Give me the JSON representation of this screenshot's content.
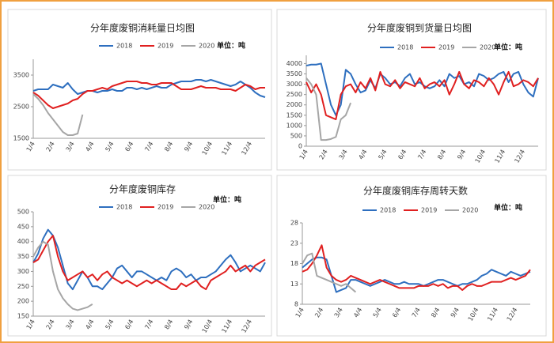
{
  "chart_data": [
    {
      "type": "line",
      "title": "分年度废铜消耗量日均图",
      "unit": "单位：吨",
      "categories": [
        "1/4",
        null,
        null,
        null,
        "2/4",
        null,
        null,
        null,
        "3/4",
        null,
        null,
        null,
        "4/4",
        null,
        null,
        null,
        "5/4",
        null,
        null,
        null,
        "6/4",
        null,
        null,
        null,
        "7/4",
        null,
        null,
        null,
        "8/4",
        null,
        null,
        null,
        "9/4",
        null,
        null,
        null,
        "10/4",
        null,
        null,
        null,
        "11/4",
        null,
        null,
        null,
        "12/4",
        null,
        null,
        null
      ],
      "ylim": [
        1500,
        4000
      ],
      "yticks": [
        1500,
        2500,
        3500
      ],
      "series": [
        {
          "name": "2018",
          "color": "#2e6fbf",
          "values": [
            3000,
            3050,
            3050,
            3050,
            3200,
            3150,
            3100,
            3250,
            3050,
            2900,
            2950,
            3000,
            3000,
            2950,
            3000,
            3000,
            3050,
            3000,
            3000,
            3100,
            3100,
            3050,
            3100,
            3050,
            3100,
            3150,
            3100,
            3100,
            3200,
            3250,
            3300,
            3300,
            3300,
            3350,
            3350,
            3300,
            3350,
            3300,
            3250,
            3200,
            3150,
            3200,
            3300,
            3200,
            3100,
            2950,
            2850,
            2800
          ]
        },
        {
          "name": "2019",
          "color": "#e02020",
          "values": [
            2950,
            2850,
            2700,
            2550,
            2450,
            2500,
            2550,
            2600,
            2700,
            2750,
            2900,
            3000,
            3000,
            3050,
            3100,
            3050,
            3150,
            3200,
            3250,
            3300,
            3300,
            3300,
            3250,
            3250,
            3200,
            3200,
            3250,
            3250,
            3250,
            3150,
            3050,
            3050,
            3050,
            3100,
            3150,
            3100,
            3100,
            3100,
            3050,
            3050,
            3050,
            3000,
            3100,
            3200,
            3150,
            3050,
            3100,
            3100
          ]
        },
        {
          "name": "2020",
          "color": "#a6a6a6",
          "values": [
            2900,
            2750,
            2550,
            2300,
            2100,
            1900,
            1700,
            1600,
            1600,
            1650,
            2250,
            null,
            null,
            null,
            null,
            null,
            null,
            null,
            null,
            null,
            null,
            null,
            null,
            null,
            null,
            null,
            null,
            null,
            null,
            null,
            null,
            null,
            null,
            null,
            null,
            null,
            null,
            null,
            null,
            null,
            null,
            null,
            null,
            null,
            null,
            null,
            null,
            null
          ]
        }
      ]
    },
    {
      "type": "line",
      "title": "分年度废铜到货量日均图",
      "unit": "单位：吨",
      "categories": [
        "1/4",
        null,
        null,
        null,
        "2/4",
        null,
        null,
        null,
        "3/4",
        null,
        null,
        null,
        "4/4",
        null,
        null,
        null,
        "5/4",
        null,
        null,
        null,
        "6/4",
        null,
        null,
        null,
        "7/4",
        null,
        null,
        null,
        "8/4",
        null,
        null,
        null,
        "9/4",
        null,
        null,
        null,
        "10/4",
        null,
        null,
        null,
        "11/4",
        null,
        null,
        null,
        "12/4",
        null,
        null,
        null
      ],
      "ylim": [
        0,
        4400
      ],
      "yticks": [
        0,
        500,
        1000,
        1500,
        2000,
        2500,
        3000,
        3500,
        4000
      ],
      "series": [
        {
          "name": "2018",
          "color": "#2e6fbf",
          "values": [
            3900,
            3950,
            3950,
            4000,
            3000,
            2000,
            1500,
            2000,
            3700,
            3500,
            3000,
            2600,
            2700,
            3200,
            2800,
            3500,
            3300,
            3000,
            3100,
            2900,
            3300,
            3500,
            3000,
            3100,
            2900,
            2800,
            2900,
            3200,
            2900,
            3500,
            3300,
            3400,
            3000,
            3100,
            2900,
            3500,
            3400,
            3200,
            3300,
            3500,
            3600,
            3100,
            3500,
            3600,
            3000,
            2600,
            2400,
            3300
          ]
        },
        {
          "name": "2019",
          "color": "#e02020",
          "values": [
            3100,
            2600,
            3000,
            2500,
            1500,
            1400,
            1300,
            2500,
            2900,
            3000,
            2600,
            3100,
            2800,
            3300,
            2700,
            3600,
            3000,
            2900,
            3200,
            2800,
            3100,
            3000,
            2900,
            3300,
            2800,
            3000,
            3100,
            2900,
            3200,
            2500,
            3000,
            3600,
            3000,
            2800,
            3200,
            3100,
            2900,
            3300,
            3000,
            2500,
            3100,
            3600,
            2900,
            3000,
            3200,
            3100,
            2900,
            3300
          ]
        },
        {
          "name": "2020",
          "color": "#a6a6a6",
          "values": [
            3300,
            3000,
            2500,
            300,
            300,
            350,
            450,
            1300,
            1500,
            2100,
            null,
            null,
            null,
            null,
            null,
            null,
            null,
            null,
            null,
            null,
            null,
            null,
            null,
            null,
            null,
            null,
            null,
            null,
            null,
            null,
            null,
            null,
            null,
            null,
            null,
            null,
            null,
            null,
            null,
            null,
            null,
            null,
            null,
            null,
            null,
            null,
            null,
            null
          ]
        }
      ]
    },
    {
      "type": "line",
      "title": "分年度废铜库存",
      "unit": "单位：吨",
      "categories": [
        "1/4",
        null,
        null,
        null,
        "2/4",
        null,
        null,
        null,
        "3/4",
        null,
        null,
        null,
        "4/4",
        null,
        null,
        null,
        "5/4",
        null,
        null,
        null,
        "6/4",
        null,
        null,
        null,
        "7/4",
        null,
        null,
        null,
        "8/4",
        null,
        null,
        null,
        "9/4",
        null,
        null,
        null,
        "10/4",
        null,
        null,
        null,
        "11/4",
        null,
        null,
        null,
        "12/4",
        null,
        null,
        null
      ],
      "ylim": [
        150,
        500
      ],
      "yticks": [
        150,
        200,
        250,
        300,
        350,
        400,
        450,
        500
      ],
      "series": [
        {
          "name": "2018",
          "color": "#2e6fbf",
          "values": [
            330,
            360,
            410,
            440,
            420,
            380,
            320,
            260,
            240,
            270,
            300,
            280,
            250,
            250,
            240,
            260,
            280,
            310,
            320,
            300,
            280,
            300,
            300,
            290,
            280,
            270,
            280,
            270,
            300,
            310,
            300,
            280,
            290,
            270,
            280,
            280,
            290,
            300,
            320,
            340,
            355,
            330,
            300,
            310,
            320,
            310,
            300,
            330
          ]
        },
        {
          "name": "2019",
          "color": "#e02020",
          "values": [
            330,
            340,
            370,
            400,
            420,
            350,
            300,
            270,
            280,
            290,
            300,
            280,
            290,
            270,
            290,
            300,
            280,
            270,
            260,
            270,
            260,
            250,
            260,
            270,
            260,
            270,
            260,
            250,
            240,
            240,
            260,
            250,
            260,
            270,
            250,
            240,
            270,
            280,
            290,
            300,
            320,
            300,
            310,
            320,
            300,
            320,
            330,
            340
          ]
        },
        {
          "name": "2020",
          "color": "#a6a6a6",
          "values": [
            350,
            380,
            400,
            390,
            300,
            240,
            210,
            190,
            175,
            170,
            175,
            180,
            190,
            null,
            null,
            null,
            null,
            null,
            null,
            null,
            null,
            null,
            null,
            null,
            null,
            null,
            null,
            null,
            null,
            null,
            null,
            null,
            null,
            null,
            null,
            null,
            null,
            null,
            null,
            null,
            null,
            null,
            null,
            null,
            null,
            null,
            null,
            null
          ]
        }
      ]
    },
    {
      "type": "line",
      "title": "分年度废铜库存周转天数",
      "unit": "单位：吨",
      "categories": [
        "1/4",
        null,
        null,
        null,
        "2/4",
        null,
        null,
        null,
        "3/4",
        null,
        null,
        null,
        "4/4",
        null,
        null,
        null,
        "5/4",
        null,
        null,
        null,
        "6/4",
        null,
        null,
        null,
        "7/4",
        null,
        null,
        null,
        "8/4",
        null,
        null,
        null,
        "9/4",
        null,
        null,
        null,
        "10/4",
        null,
        null,
        null,
        "11/4",
        null,
        null,
        null,
        "12/4",
        null,
        null,
        null
      ],
      "ylim": [
        8,
        28
      ],
      "yticks": [
        8,
        13,
        18,
        23,
        28
      ],
      "series": [
        {
          "name": "2018",
          "color": "#2e6fbf",
          "values": [
            17,
            18,
            19,
            19.5,
            19.5,
            19,
            15,
            11,
            11.5,
            12,
            14,
            14,
            13.5,
            13,
            12.5,
            13,
            13.5,
            14,
            13.5,
            13,
            13,
            13.5,
            13,
            13,
            13,
            12.5,
            13,
            13.5,
            14,
            14,
            13.5,
            13,
            12.5,
            13,
            13,
            13.5,
            14,
            15,
            15.5,
            16.5,
            16,
            15.5,
            15,
            16,
            15.5,
            15,
            15.5,
            16
          ]
        },
        {
          "name": "2019",
          "color": "#e02020",
          "values": [
            16,
            16.5,
            18,
            20,
            22.5,
            17,
            15,
            14,
            13.5,
            14,
            15,
            14.5,
            14,
            13.5,
            13,
            13.5,
            14,
            13.5,
            13,
            12.5,
            12,
            12,
            12,
            12,
            12.5,
            12.5,
            12.5,
            13,
            12.5,
            13,
            12,
            12.5,
            12.5,
            11.5,
            12.5,
            13,
            12.5,
            12.5,
            13,
            13.5,
            13.5,
            13.5,
            14,
            14.5,
            14,
            14.5,
            15,
            16.5
          ]
        },
        {
          "name": "2020",
          "color": "#a6a6a6",
          "values": [
            18,
            20,
            20.5,
            15,
            14.5,
            14,
            13.5,
            13,
            12.5,
            13,
            12,
            11,
            null,
            null,
            null,
            null,
            null,
            null,
            null,
            null,
            null,
            null,
            null,
            null,
            null,
            null,
            null,
            null,
            null,
            null,
            null,
            null,
            null,
            null,
            null,
            null,
            null,
            null,
            null,
            null,
            null,
            null,
            null,
            null,
            null,
            null,
            null,
            null
          ]
        }
      ]
    }
  ]
}
